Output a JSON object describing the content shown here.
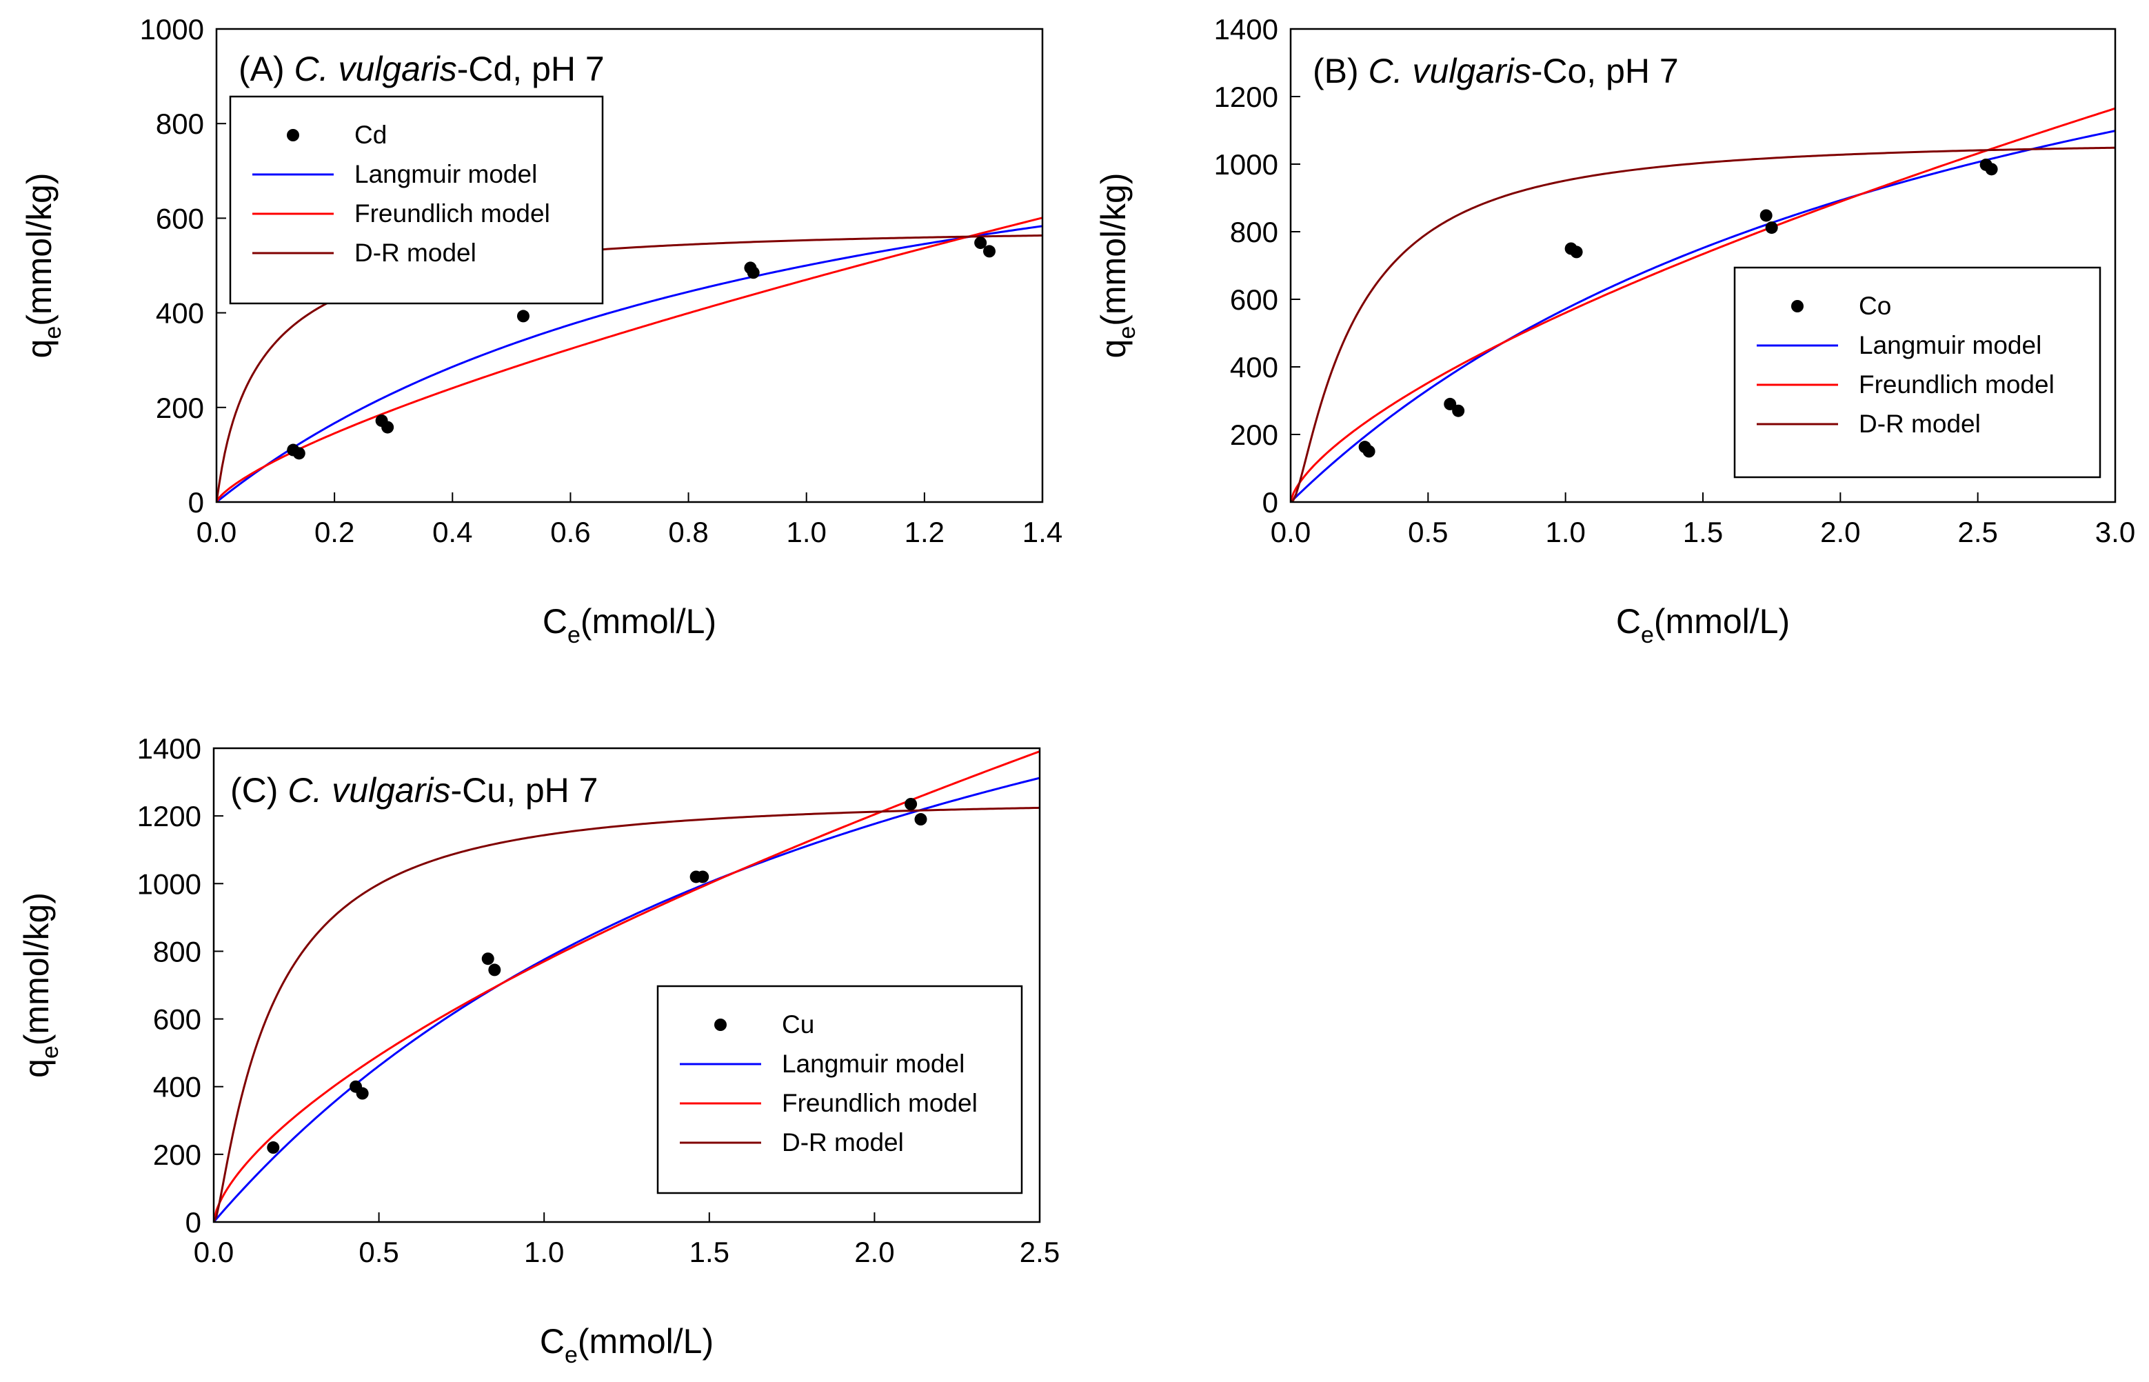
{
  "chart_data": [
    {
      "type": "scatter",
      "title_prefix": "(A) ",
      "title_italic": "C. vulgaris",
      "title_suffix": "-Cd, pH 7",
      "xlabel": "C",
      "xlabel_sub": "e",
      "xlabel_unit": "(mmol/L)",
      "ylabel": "q",
      "ylabel_sub": "e",
      "ylabel_unit": "(mmol/kg)",
      "xlim": [
        0,
        1.4
      ],
      "ylim": [
        0,
        1000
      ],
      "xticks": [
        "0.0",
        "0.2",
        "0.4",
        "0.6",
        "0.8",
        "1.0",
        "1.2",
        "1.4"
      ],
      "yticks": [
        "0",
        "200",
        "400",
        "600",
        "800",
        "1000"
      ],
      "legend": [
        "Cd",
        "Langmuir model",
        "Freundlich model",
        "D-R model"
      ],
      "legend_position": "top-left",
      "points": [
        [
          0.13,
          110
        ],
        [
          0.14,
          103
        ],
        [
          0.28,
          172
        ],
        [
          0.29,
          158
        ],
        [
          0.52,
          393
        ],
        [
          0.905,
          495
        ],
        [
          0.91,
          485
        ],
        [
          1.295,
          548
        ],
        [
          1.31,
          530
        ]
      ],
      "models": {
        "langmuir": {
          "qmax": 1000,
          "K": 1.0
        },
        "freundlich": {
          "K": 470,
          "n": 1.37
        },
        "dr": {
          "qm": 579,
          "B": 0.0153
        }
      },
      "colors": {
        "points": "#000000",
        "langmuir": "#0000ff",
        "freundlich": "#ff0000",
        "dr": "#800000"
      }
    },
    {
      "type": "scatter",
      "title_prefix": "(B) ",
      "title_italic": "C. vulgaris",
      "title_suffix": "-Co, pH 7",
      "xlabel": "C",
      "xlabel_sub": "e",
      "xlabel_unit": "(mmol/L)",
      "ylabel": "q",
      "ylabel_sub": "e",
      "ylabel_unit": "(mmol/kg)",
      "xlim": [
        0,
        3.0
      ],
      "ylim": [
        0,
        1400
      ],
      "xticks": [
        "0.0",
        "0.5",
        "1.0",
        "1.5",
        "2.0",
        "2.5",
        "3.0"
      ],
      "yticks": [
        "0",
        "200",
        "400",
        "600",
        "800",
        "1000",
        "1200",
        "1400"
      ],
      "legend": [
        "Co",
        "Langmuir model",
        "Freundlich model",
        "D-R model"
      ],
      "legend_position": "center-right",
      "points": [
        [
          0.27,
          163
        ],
        [
          0.285,
          150
        ],
        [
          0.58,
          290
        ],
        [
          0.61,
          270
        ],
        [
          1.02,
          750
        ],
        [
          1.04,
          740
        ],
        [
          1.73,
          848
        ],
        [
          1.75,
          812
        ],
        [
          2.53,
          998
        ],
        [
          2.55,
          985
        ]
      ],
      "models": {
        "langmuir": {
          "qmax": 2040,
          "K": 0.389
        },
        "freundlich": {
          "K": 560,
          "n": 1.5
        },
        "dr": {
          "qm": 1070,
          "B": 0.0398
        }
      },
      "colors": {
        "points": "#000000",
        "langmuir": "#0000ff",
        "freundlich": "#ff0000",
        "dr": "#800000"
      }
    },
    {
      "type": "scatter",
      "title_prefix": "(C) ",
      "title_italic": "C. vulgaris",
      "title_suffix": "-Cu, pH 7",
      "xlabel": "C",
      "xlabel_sub": "e",
      "xlabel_unit": "(mmol/L)",
      "ylabel": "q",
      "ylabel_sub": "e",
      "ylabel_unit": "(mmol/kg)",
      "xlim": [
        0,
        2.5
      ],
      "ylim": [
        0,
        1400
      ],
      "xticks": [
        "0.0",
        "0.5",
        "1.0",
        "1.5",
        "2.0",
        "2.5"
      ],
      "yticks": [
        "0",
        "200",
        "400",
        "600",
        "800",
        "1000",
        "1200",
        "1400"
      ],
      "legend": [
        "Cu",
        "Langmuir model",
        "Freundlich model",
        "D-R model"
      ],
      "legend_position": "center-right",
      "points": [
        [
          0.18,
          220
        ],
        [
          0.43,
          400
        ],
        [
          0.45,
          380
        ],
        [
          0.83,
          778
        ],
        [
          0.85,
          745
        ],
        [
          1.46,
          1020
        ],
        [
          1.48,
          1020
        ],
        [
          2.11,
          1235
        ],
        [
          2.14,
          1190
        ]
      ],
      "models": {
        "langmuir": {
          "qmax": 2436,
          "K": 0.467
        },
        "freundlich": {
          "K": 770,
          "n": 1.55
        },
        "dr": {
          "qm": 1250,
          "B": 0.0303
        }
      },
      "colors": {
        "points": "#000000",
        "langmuir": "#0000ff",
        "freundlich": "#ff0000",
        "dr": "#800000"
      }
    }
  ]
}
